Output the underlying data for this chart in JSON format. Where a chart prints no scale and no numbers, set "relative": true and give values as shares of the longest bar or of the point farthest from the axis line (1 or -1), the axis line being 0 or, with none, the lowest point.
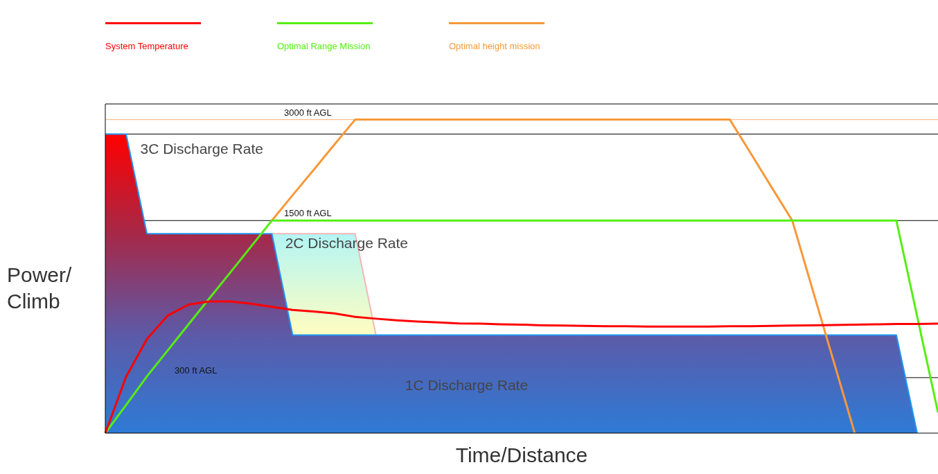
{
  "chart_data": {
    "type": "line",
    "relative": true,
    "xlabel": "Time/Distance",
    "ylabel": "Power/\nClimb",
    "legend": "top left",
    "tick_labels": false,
    "grid": false,
    "categories": [
      null,
      null,
      null,
      null,
      null,
      null,
      null,
      null,
      null,
      null,
      null,
      null,
      null,
      null,
      null,
      null,
      null,
      null,
      null,
      null,
      null,
      null,
      null,
      null,
      null,
      null,
      null,
      null,
      null,
      null,
      null,
      null,
      null,
      null,
      null,
      null,
      null,
      null,
      null,
      null,
      null
    ],
    "series": [
      {
        "type": "area",
        "color": "#f4b6b6",
        "colors": [
          null,
          null,
          null,
          null,
          null,
          null,
          null,
          null,
          "#b3f5f5",
          "#b3f5f5",
          "#b3f5f5",
          "#b3f5f5",
          "#b3f5f5",
          "#fffdc0",
          null,
          null,
          null,
          null,
          null,
          null,
          null,
          null,
          null,
          null,
          null,
          null,
          null,
          null,
          null,
          null,
          null,
          null,
          null,
          null,
          null,
          null,
          null,
          null,
          null,
          null,
          null
        ],
        "values": [
          null,
          null,
          null,
          null,
          null,
          null,
          null,
          null,
          0.636,
          0.636,
          0.636,
          0.636,
          0.636,
          0.313,
          null,
          null,
          null,
          null,
          null,
          null,
          null,
          null,
          null,
          null,
          null,
          null,
          null,
          null,
          null,
          null,
          null,
          null,
          null,
          null,
          null,
          null,
          null,
          null,
          null,
          null,
          null
        ]
      },
      {
        "type": "area",
        "color": "#2196f3",
        "colors": [
          "#ff0000",
          "#ff0000",
          "#a62848",
          "#a62848",
          "#a62848",
          "#a62848",
          "#a62848",
          "#a62848",
          "#a62848",
          "#5c5aa8",
          "#5c5aa8",
          "#5c5aa8",
          "#5c5aa8",
          "#5c5aa8",
          "#5c5aa8",
          "#5c5aa8",
          "#5c5aa8",
          "#5c5aa8",
          "#5c5aa8",
          "#5c5aa8",
          "#5c5aa8",
          "#5c5aa8",
          "#5c5aa8",
          "#5c5aa8",
          "#5c5aa8",
          "#5c5aa8",
          "#5c5aa8",
          "#5c5aa8",
          "#5c5aa8",
          "#5c5aa8",
          "#5c5aa8",
          "#5c5aa8",
          "#5c5aa8",
          "#5c5aa8",
          "#5c5aa8",
          "#5c5aa8",
          "#5c5aa8",
          "#5c5aa8",
          "#5c5aa8",
          "#2e7bd6",
          null
        ],
        "values": [
          0.954,
          0.954,
          0.636,
          0.636,
          0.636,
          0.636,
          0.636,
          0.636,
          0.636,
          0.313,
          0.313,
          0.313,
          0.313,
          0.313,
          0.313,
          0.313,
          0.313,
          0.313,
          0.313,
          0.313,
          0.313,
          0.313,
          0.313,
          0.313,
          0.313,
          0.313,
          0.313,
          0.313,
          0.313,
          0.313,
          0.313,
          0.313,
          0.313,
          0.313,
          0.313,
          0.313,
          0.313,
          0.313,
          0.313,
          0,
          null
        ]
      },
      {
        "name": "Optimal height mission",
        "color": "#f7983a",
        "values": [
          null,
          null,
          null,
          null,
          null,
          null,
          null,
          null,
          0.678,
          0.759,
          0.839,
          0.92,
          1,
          1,
          1,
          1,
          1,
          1,
          1,
          1,
          1,
          1,
          1,
          1,
          1,
          1,
          1,
          1,
          1,
          1,
          1,
          0.893,
          0.785,
          0.678,
          0.452,
          0.226,
          0,
          null,
          null,
          null,
          null
        ]
      },
      {
        "name": "Optimal Range Mission",
        "color": "#55ee11",
        "values": [
          0,
          0.09,
          0.181,
          0.264,
          0.347,
          0.43,
          0.512,
          0.595,
          0.678,
          0.678,
          0.678,
          0.678,
          0.678,
          0.678,
          0.678,
          0.678,
          0.678,
          0.678,
          0.678,
          0.678,
          0.678,
          0.678,
          0.678,
          0.678,
          0.678,
          0.678,
          0.678,
          0.678,
          0.678,
          0.678,
          0.678,
          0.678,
          0.678,
          0.678,
          0.678,
          0.678,
          0.678,
          0.678,
          0.678,
          0.372,
          0.066
        ]
      },
      {
        "name": "System Temperature",
        "color": "#ff0000",
        "values": [
          0,
          0.18,
          0.3,
          0.375,
          0.41,
          0.42,
          0.42,
          0.413,
          0.403,
          0.393,
          0.388,
          0.382,
          0.371,
          0.365,
          0.36,
          0.356,
          0.353,
          0.35,
          0.349,
          0.347,
          0.346,
          0.344,
          0.343,
          0.342,
          0.341,
          0.341,
          0.34,
          0.34,
          0.34,
          0.34,
          0.341,
          0.341,
          0.342,
          0.343,
          0.344,
          0.345,
          0.346,
          0.347,
          0.348,
          0.348,
          0.349
        ]
      }
    ],
    "ref_lines": [
      {
        "axis": "y",
        "value": 1,
        "label": "3000 ft AGL",
        "color": "#f7b27a"
      },
      {
        "axis": "y",
        "value": 0.954,
        "color": "#000000"
      },
      {
        "axis": "y",
        "value": 0.678,
        "label": "1500 ft AGL",
        "color": "#000000"
      },
      {
        "axis": "y",
        "value": 0.177,
        "label": "300 ft AGL",
        "color": "#000000"
      }
    ],
    "annotations": [
      "3C Discharge Rate",
      "2C Discharge Rate",
      "1C Discharge Rate"
    ]
  }
}
